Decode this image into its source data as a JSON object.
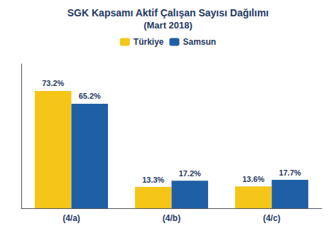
{
  "chart_data": {
    "type": "bar",
    "title": "SGK Kapsamı Aktif Çalışan Sayısı Dağılımı",
    "subtitle": "(Mart 2018)",
    "categories": [
      "(4/a)",
      "(4/b)",
      "(4/c)"
    ],
    "series": [
      {
        "name": "Türkiye",
        "color": "#F5C518",
        "values": [
          73.2,
          13.3,
          13.6
        ],
        "value_labels": [
          "73.2%",
          "13.3%",
          "13.6%"
        ]
      },
      {
        "name": "Samsun",
        "color": "#1F5FA6",
        "values": [
          65.2,
          17.2,
          17.7
        ],
        "value_labels": [
          "65.2%",
          "17.2%",
          "17.7%"
        ]
      }
    ],
    "ylim": [
      0,
      90
    ],
    "grid": false,
    "legend": "top",
    "data_labels": true,
    "tick_labels": "x"
  }
}
